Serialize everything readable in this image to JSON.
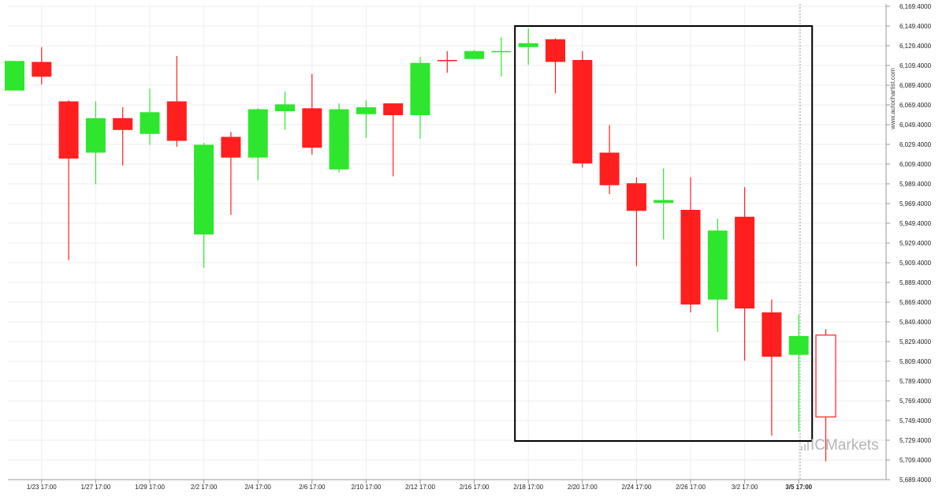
{
  "watermark": {
    "side_text": "www.autochartist.com",
    "brand_prefix": "IC",
    "brand_suffix": "Markets"
  },
  "colors": {
    "bullish": "#2ee62e",
    "bearish": "#ff1f1f",
    "grid": "#eeeeee",
    "axis": "#999999",
    "pattern_box": "#000000",
    "forecast_candle": "#ff1f1f"
  },
  "chart_data": {
    "type": "candlestick",
    "ylim": [
      5689.4,
      6169.4
    ],
    "y_ticks": [
      "6,169.4000",
      "6,149.4000",
      "6,129.4000",
      "6,109.4000",
      "6,089.4000",
      "6,069.4000",
      "6,049.4000",
      "6,029.4000",
      "6,009.4000",
      "5,989.4000",
      "5,969.4000",
      "5,949.4000",
      "5,929.4000",
      "5,909.4000",
      "5,889.4000",
      "5,869.4000",
      "5,849.4000",
      "5,829.4000",
      "5,809.4000",
      "5,789.4000",
      "5,769.4000",
      "5,749.4000",
      "5,729.4000",
      "5,709.4000",
      "5,689.4000"
    ],
    "x_tick_labels": [
      "1/23 17:00",
      "1/27 17:00",
      "1/29 17:00",
      "2/2 17:00",
      "2/4 17:00",
      "2/6 17:00",
      "2/10 17:00",
      "2/12 17:00",
      "2/16 17:00",
      "2/18 17:00",
      "2/20 17:00",
      "2/24 17:00",
      "2/26 17:00",
      "3/2 17:00",
      "3/5 17:00"
    ],
    "current_x_label": "3/5 17:00",
    "candles": [
      {
        "open": 6084,
        "high": 6114,
        "low": 6084,
        "close": 6114
      },
      {
        "open": 6113,
        "high": 6128,
        "low": 6090,
        "close": 6098
      },
      {
        "open": 6073,
        "high": 6074,
        "low": 5912,
        "close": 6015
      },
      {
        "open": 6021,
        "high": 6073,
        "low": 5989,
        "close": 6056
      },
      {
        "open": 6056,
        "high": 6067,
        "low": 6008,
        "close": 6044
      },
      {
        "open": 6040,
        "high": 6086,
        "low": 6029,
        "close": 6062
      },
      {
        "open": 6073,
        "high": 6119,
        "low": 6027,
        "close": 6033
      },
      {
        "open": 5938,
        "high": 6031,
        "low": 5904,
        "close": 6029
      },
      {
        "open": 6037,
        "high": 6042,
        "low": 5958,
        "close": 6016
      },
      {
        "open": 6016,
        "high": 6066,
        "low": 5993,
        "close": 6065
      },
      {
        "open": 6063,
        "high": 6083,
        "low": 6044,
        "close": 6070
      },
      {
        "open": 6066,
        "high": 6101,
        "low": 6019,
        "close": 6026
      },
      {
        "open": 6004,
        "high": 6071,
        "low": 6001,
        "close": 6065
      },
      {
        "open": 6060,
        "high": 6074,
        "low": 6036,
        "close": 6067
      },
      {
        "open": 6071,
        "high": 6071,
        "low": 5997,
        "close": 6059
      },
      {
        "open": 6059,
        "high": 6118,
        "low": 6035,
        "close": 6112
      },
      {
        "open": 6115,
        "high": 6124,
        "low": 6102,
        "close": 6114
      },
      {
        "open": 6116,
        "high": 6125,
        "low": 6117,
        "close": 6124
      },
      {
        "open": 6124,
        "high": 6138,
        "low": 6098,
        "close": 6124
      },
      {
        "open": 6128,
        "high": 6147,
        "low": 6110,
        "close": 6132
      },
      {
        "open": 6136,
        "high": 6137,
        "low": 6081,
        "close": 6113
      },
      {
        "open": 6115,
        "high": 6124,
        "low": 6006,
        "close": 6010
      },
      {
        "open": 6021,
        "high": 6049,
        "low": 5979,
        "close": 5988
      },
      {
        "open": 5990,
        "high": 5996,
        "low": 5906,
        "close": 5962
      },
      {
        "open": 5970,
        "high": 6005,
        "low": 5933,
        "close": 5973
      },
      {
        "open": 5963,
        "high": 5996,
        "low": 5859,
        "close": 5867
      },
      {
        "open": 5872,
        "high": 5954,
        "low": 5839,
        "close": 5942
      },
      {
        "open": 5956,
        "high": 5986,
        "low": 5810,
        "close": 5863
      },
      {
        "open": 5859,
        "high": 5872,
        "low": 5734,
        "close": 5814
      },
      {
        "open": 5816,
        "high": 5857,
        "low": 5738,
        "close": 5835
      }
    ],
    "forecast_candle": {
      "open": 5836,
      "high": 5842,
      "low": 5708,
      "close": 5753
    },
    "pattern_box": {
      "start_index": 19,
      "end_index": 29,
      "top": 6149.4,
      "bottom": 5728.6
    }
  }
}
